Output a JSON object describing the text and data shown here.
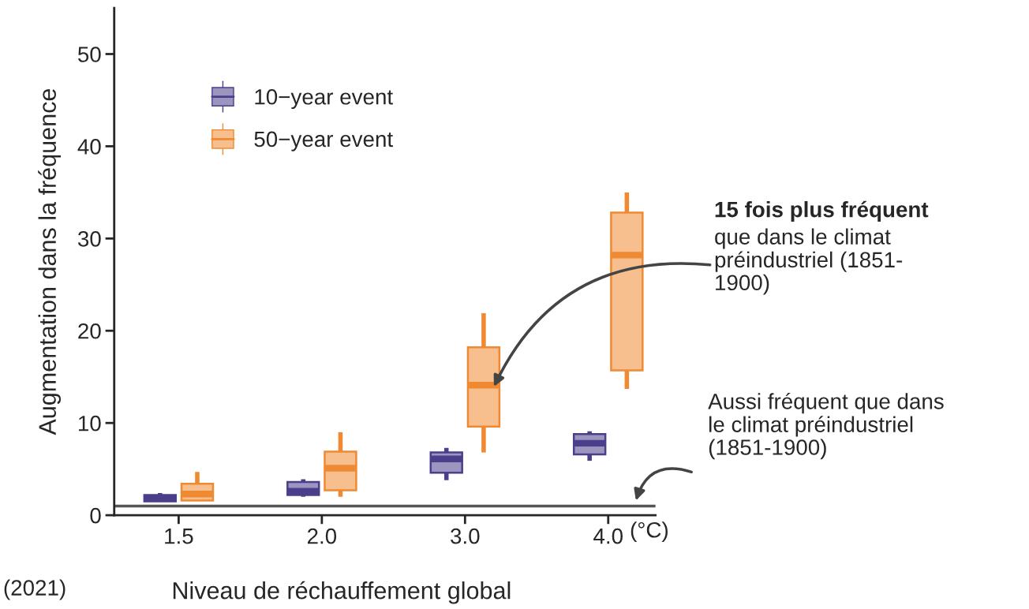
{
  "chart_data": {
    "type": "box",
    "xlabel": "Niveau de réchauffement global",
    "ylabel": "Augmentation dans la fréquence",
    "categories": [
      "1.5",
      "2.0",
      "3.0",
      "4.0"
    ],
    "ylim": [
      0,
      55
    ],
    "yticks": [
      0,
      10,
      20,
      30,
      40,
      50
    ],
    "legend": "top left",
    "grid": false,
    "series": [
      {
        "name": "10−year event",
        "color": "#4b3f8c",
        "boxes": [
          {
            "low": 1.5,
            "q1": 1.5,
            "median": 1.8,
            "q3": 2.2,
            "high": 2.4
          },
          {
            "low": 2.0,
            "q1": 2.2,
            "median": 2.6,
            "q3": 3.6,
            "high": 3.9
          },
          {
            "low": 3.8,
            "q1": 4.6,
            "median": 6.1,
            "q3": 6.8,
            "high": 7.3
          },
          {
            "low": 5.9,
            "q1": 6.6,
            "median": 7.8,
            "q3": 8.8,
            "high": 9.1
          }
        ]
      },
      {
        "name": "50−year event",
        "color": "#f08a32",
        "boxes": [
          {
            "low": 1.6,
            "q1": 1.6,
            "median": 2.3,
            "q3": 3.4,
            "high": 4.7
          },
          {
            "low": 2.0,
            "q1": 2.7,
            "median": 5.1,
            "q3": 6.9,
            "high": 9.0
          },
          {
            "low": 6.8,
            "q1": 9.6,
            "median": 14.1,
            "q3": 18.2,
            "high": 21.9
          },
          {
            "low": 13.7,
            "q1": 15.7,
            "median": 28.2,
            "q3": 32.8,
            "high": 35.0
          }
        ]
      }
    ],
    "ref_lines": [
      {
        "axis": "y",
        "value": 1,
        "color": "#555555"
      }
    ],
    "annotations": [
      "15 fois plus fréquent\nque dans le climat\npréindustriel (1851-\n1900)",
      "Aussi fréquent que dans\nle climat préindustriel\n(1851-1900)",
      "(°C)",
      "(2021)"
    ]
  }
}
